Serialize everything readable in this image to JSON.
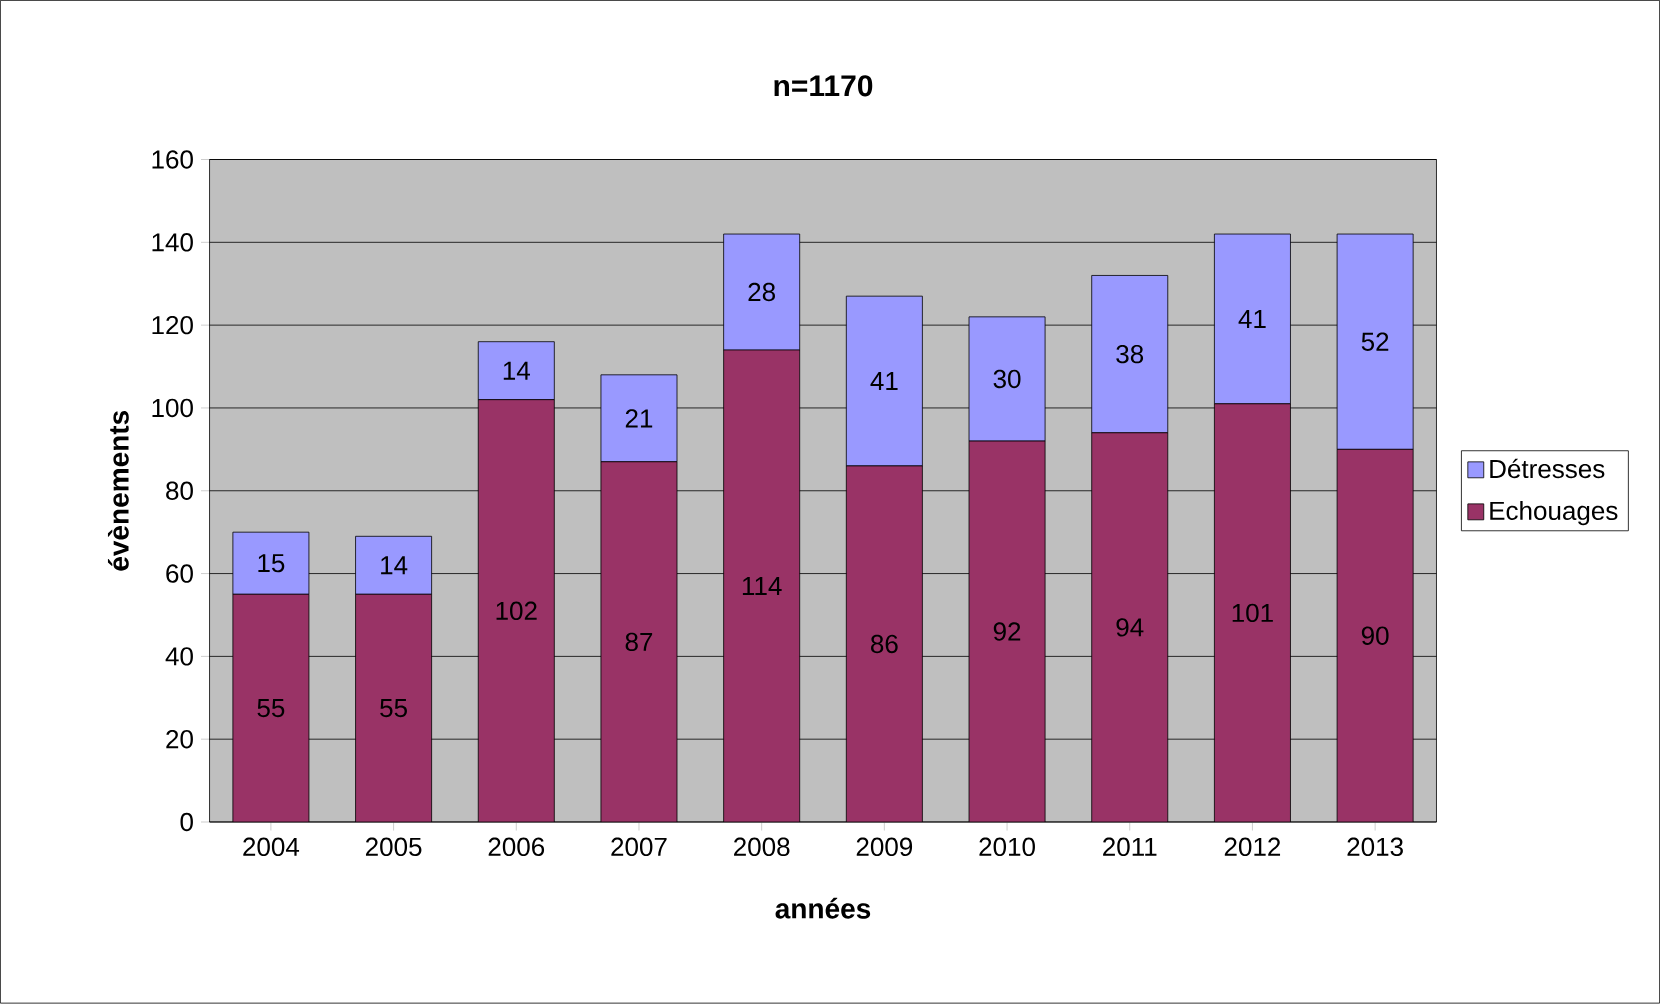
{
  "chart_data": {
    "type": "bar",
    "title": "n=1170",
    "xlabel": "années",
    "ylabel": "évènements",
    "categories": [
      "2004",
      "2005",
      "2006",
      "2007",
      "2008",
      "2009",
      "2010",
      "2011",
      "2012",
      "2013"
    ],
    "series": [
      {
        "name": "Echouages",
        "color": "#993366",
        "values": [
          55,
          55,
          102,
          87,
          114,
          86,
          92,
          94,
          101,
          90
        ]
      },
      {
        "name": "Détresses",
        "color": "#9999ff",
        "values": [
          15,
          14,
          14,
          21,
          28,
          41,
          30,
          38,
          41,
          52
        ]
      }
    ],
    "stacked": true,
    "data_labels": true,
    "ylim": [
      0,
      160
    ],
    "yticks": [
      0,
      20,
      40,
      60,
      80,
      100,
      120,
      140,
      160
    ],
    "grid": "y",
    "legend": "right"
  }
}
